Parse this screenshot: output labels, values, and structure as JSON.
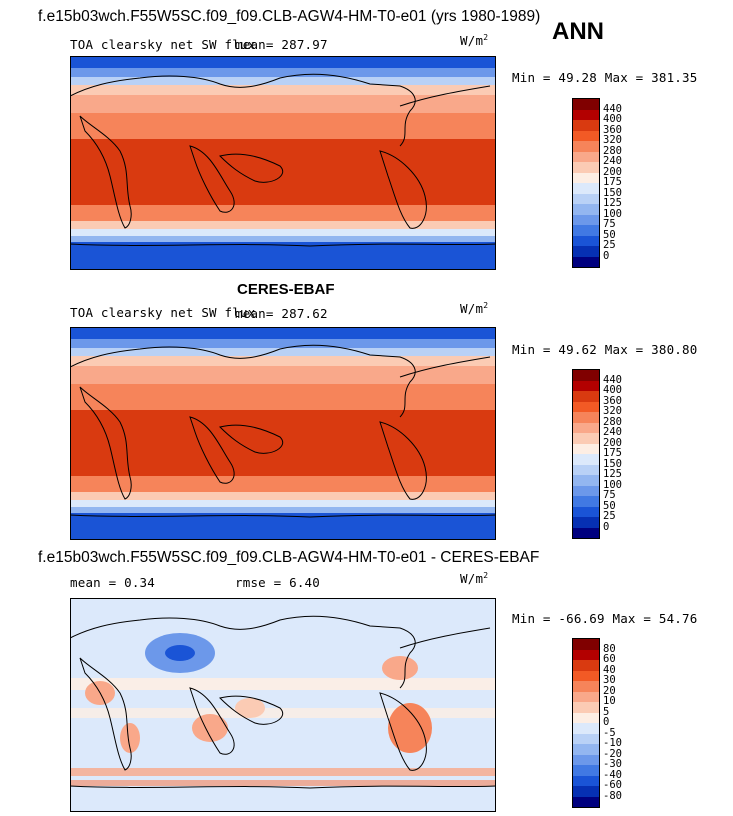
{
  "header": {
    "case_title": "f.e15b03wch.F55W5SC.f09_f09.CLB-AGW4-HM-T0-e01 (yrs 1980-1989)",
    "season": "ANN"
  },
  "panels": [
    {
      "variable": "TOA clearsky net SW flux",
      "mean_label": "mean=",
      "mean_value": "287.97",
      "units": "W/m",
      "units_exp": "2",
      "min_label": "Min =",
      "min_value": "49.28",
      "max_label": "Max =",
      "max_value": "381.35"
    },
    {
      "title": "CERES-EBAF",
      "variable": "TOA clearsky net SW flux",
      "mean_label": "mean=",
      "mean_value": "287.62",
      "units": "W/m",
      "units_exp": "2",
      "min_label": "Min =",
      "min_value": "49.62",
      "max_label": "Max =",
      "max_value": "380.80"
    },
    {
      "title": "f.e15b03wch.F55W5SC.f09_f09.CLB-AGW4-HM-T0-e01 - CERES-EBAF",
      "mean_label": "mean =",
      "mean_value": "0.34",
      "rmse_label": "rmse =",
      "rmse_value": "6.40",
      "units": "W/m",
      "units_exp": "2",
      "min_label": "Min =",
      "min_value": "-66.69",
      "max_label": "Max =",
      "max_value": "54.76"
    }
  ],
  "colorbar_abs": {
    "labels": [
      "440",
      "400",
      "360",
      "320",
      "280",
      "240",
      "200",
      "175",
      "150",
      "125",
      "100",
      "75",
      "50",
      "25",
      "0"
    ],
    "colors": [
      "#800000",
      "#b30000",
      "#d93a10",
      "#f25a25",
      "#f6845a",
      "#f9a88a",
      "#fbcbb4",
      "#fdeee4",
      "#dce9fb",
      "#b9d1f6",
      "#93b6f0",
      "#6c98ea",
      "#4179e3",
      "#1a54d6",
      "#0630b3",
      "#00007f"
    ]
  },
  "colorbar_diff": {
    "labels": [
      "80",
      "60",
      "40",
      "30",
      "20",
      "10",
      "5",
      "0",
      "-5",
      "-10",
      "-20",
      "-30",
      "-40",
      "-60",
      "-80"
    ],
    "colors": [
      "#800000",
      "#b30000",
      "#d93a10",
      "#f25a25",
      "#f6845a",
      "#f9a88a",
      "#fbcbb4",
      "#fdeee4",
      "#dce9fb",
      "#b9d1f6",
      "#93b6f0",
      "#6c98ea",
      "#4179e3",
      "#1a54d6",
      "#0630b3",
      "#00007f"
    ]
  }
}
